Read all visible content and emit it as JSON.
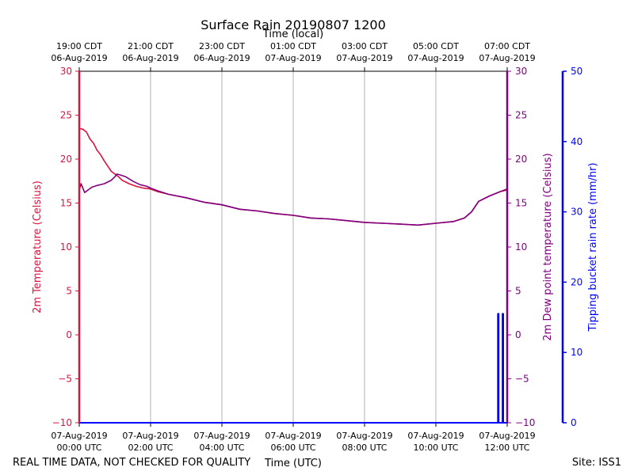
{
  "chart_data": {
    "type": "line",
    "title": "Surface Rain 20190807 1200",
    "top_axis_label": "Time (local)",
    "xlabel": "Time (UTC)",
    "ylabel_left": "2m Temperature (Celsius)",
    "ylabel_right1": "2m Dew point temperature (Celsius)",
    "ylabel_right2": "Tipping bucket rain rate (mm/hr)",
    "footer_left": "REAL TIME DATA, NOT CHECKED FOR QUALITY",
    "footer_right": "Site: ISS1",
    "xlim": [
      0,
      12
    ],
    "ylim_left": [
      -10,
      30
    ],
    "ylim_dewpoint": [
      -10,
      30
    ],
    "ylim_rain": [
      0,
      50
    ],
    "yticks_left": [
      "30",
      "25",
      "20",
      "15",
      "10",
      "5",
      "0",
      "−5",
      "−10"
    ],
    "yticks_rain": [
      "50",
      "40",
      "30",
      "20",
      "10",
      "0"
    ],
    "xticks_utc": [
      {
        "date": "07-Aug-2019",
        "time": "00:00 UTC"
      },
      {
        "date": "07-Aug-2019",
        "time": "02:00 UTC"
      },
      {
        "date": "07-Aug-2019",
        "time": "04:00 UTC"
      },
      {
        "date": "07-Aug-2019",
        "time": "06:00 UTC"
      },
      {
        "date": "07-Aug-2019",
        "time": "08:00 UTC"
      },
      {
        "date": "07-Aug-2019",
        "time": "10:00 UTC"
      },
      {
        "date": "07-Aug-2019",
        "time": "12:00 UTC"
      }
    ],
    "xticks_local": [
      {
        "time": "19:00 CDT",
        "date": "06-Aug-2019"
      },
      {
        "time": "21:00 CDT",
        "date": "06-Aug-2019"
      },
      {
        "time": "23:00 CDT",
        "date": "06-Aug-2019"
      },
      {
        "time": "01:00 CDT",
        "date": "07-Aug-2019"
      },
      {
        "time": "03:00 CDT",
        "date": "07-Aug-2019"
      },
      {
        "time": "05:00 CDT",
        "date": "07-Aug-2019"
      },
      {
        "time": "07:00 CDT",
        "date": "07-Aug-2019"
      }
    ],
    "series": [
      {
        "name": "2m Temperature",
        "color": "#dc143c",
        "axis": "left",
        "x": [
          0,
          0.1,
          0.2,
          0.3,
          0.4,
          0.5,
          0.6,
          0.7,
          0.8,
          0.9,
          1.0,
          1.1,
          1.2,
          1.4,
          1.6,
          1.8,
          2.0,
          2.2,
          2.5,
          3.0,
          3.5,
          4.0,
          4.5,
          5.0,
          5.5,
          6.0,
          6.5,
          7.0,
          7.5,
          8.0,
          8.5,
          9.0,
          9.5,
          10.0,
          10.5,
          10.8,
          11.0,
          11.2,
          11.5,
          11.8,
          12.0
        ],
        "values": [
          23.5,
          23.4,
          23.1,
          22.3,
          21.8,
          21.0,
          20.5,
          19.8,
          19.2,
          18.6,
          18.3,
          18.0,
          17.6,
          17.2,
          16.9,
          16.7,
          16.6,
          16.3,
          16.0,
          15.6,
          15.1,
          14.8,
          14.3,
          14.1,
          13.8,
          13.6,
          13.3,
          13.2,
          13.0,
          12.8,
          12.7,
          12.6,
          12.5,
          12.7,
          12.9,
          13.3,
          14.0,
          15.2,
          15.8,
          16.3,
          16.5
        ]
      },
      {
        "name": "2m Dew point temperature",
        "color": "#800080",
        "axis": "right",
        "x": [
          0,
          0.05,
          0.15,
          0.25,
          0.35,
          0.5,
          0.7,
          0.9,
          1.0,
          1.05,
          1.15,
          1.3,
          1.5,
          1.7,
          1.9,
          2.0,
          2.2,
          2.5,
          3.0,
          3.5,
          4.0,
          4.5,
          5.0,
          5.5,
          6.0,
          6.5,
          7.0,
          7.5,
          8.0,
          8.5,
          9.0,
          9.5,
          10.0,
          10.5,
          10.8,
          11.0,
          11.2,
          11.5,
          11.8,
          12.0
        ],
        "values": [
          16.5,
          17.2,
          16.2,
          16.5,
          16.8,
          17.0,
          17.2,
          17.6,
          18.0,
          18.3,
          18.2,
          18.0,
          17.5,
          17.1,
          16.9,
          16.7,
          16.4,
          16.0,
          15.6,
          15.1,
          14.8,
          14.3,
          14.1,
          13.8,
          13.6,
          13.3,
          13.2,
          13.0,
          12.8,
          12.7,
          12.6,
          12.5,
          12.7,
          12.9,
          13.3,
          14.0,
          15.2,
          15.8,
          16.3,
          16.6
        ]
      },
      {
        "name": "Tipping bucket rain rate",
        "color": "#0000ff",
        "axis": "right2",
        "x": [
          0,
          11.74,
          11.74,
          11.76,
          11.76,
          11.87,
          11.87,
          11.89,
          11.89,
          12.0
        ],
        "values": [
          0,
          0,
          15.5,
          15.5,
          0,
          0,
          15.5,
          15.5,
          0,
          0
        ]
      }
    ]
  }
}
